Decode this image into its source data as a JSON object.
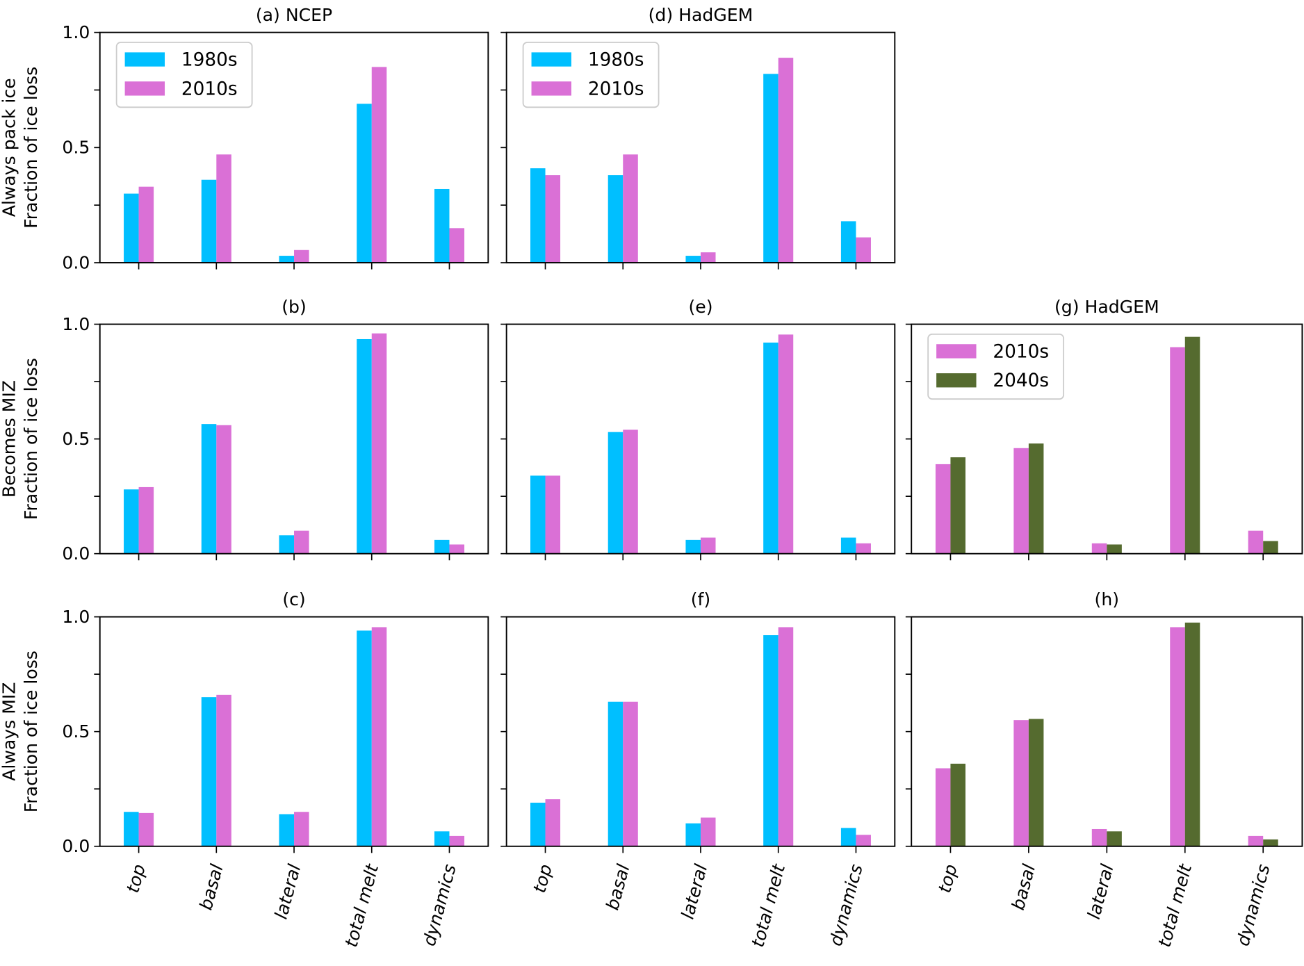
{
  "chart_data": {
    "type": "bar",
    "categories": [
      "top",
      "basal",
      "lateral",
      "total melt",
      "dynamics"
    ],
    "ylim": [
      0,
      1
    ],
    "yticks": [
      "0.0",
      "0.5",
      "1.0"
    ],
    "colors": {
      "1980s": "#00bfff",
      "2010s": "#da70d6",
      "2040s": "#556b2f"
    },
    "row_labels": [
      [
        "Always pack ice",
        "Fraction of ice loss"
      ],
      [
        "Becomes MIZ",
        "Fraction of ice loss"
      ],
      [
        "Always MIZ",
        "Fraction of ice loss"
      ]
    ],
    "panels": [
      {
        "title": "(a) NCEP",
        "row": 0,
        "col": 0,
        "legend": "top-left",
        "series": [
          {
            "name": "1980s",
            "values": [
              0.3,
              0.36,
              0.03,
              0.69,
              0.32
            ]
          },
          {
            "name": "2010s",
            "values": [
              0.33,
              0.47,
              0.055,
              0.85,
              0.15
            ]
          }
        ]
      },
      {
        "title": "(d) HadGEM",
        "row": 0,
        "col": 1,
        "legend": "top-left",
        "series": [
          {
            "name": "1980s",
            "values": [
              0.41,
              0.38,
              0.03,
              0.82,
              0.18
            ]
          },
          {
            "name": "2010s",
            "values": [
              0.38,
              0.47,
              0.045,
              0.89,
              0.11
            ]
          }
        ]
      },
      {
        "title": "(b)",
        "row": 1,
        "col": 0,
        "series": [
          {
            "name": "1980s",
            "values": [
              0.28,
              0.565,
              0.08,
              0.935,
              0.06
            ]
          },
          {
            "name": "2010s",
            "values": [
              0.29,
              0.56,
              0.1,
              0.96,
              0.04
            ]
          }
        ]
      },
      {
        "title": "(e)",
        "row": 1,
        "col": 1,
        "series": [
          {
            "name": "1980s",
            "values": [
              0.34,
              0.53,
              0.06,
              0.92,
              0.07
            ]
          },
          {
            "name": "2010s",
            "values": [
              0.34,
              0.54,
              0.07,
              0.955,
              0.045
            ]
          }
        ]
      },
      {
        "title": "(g) HadGEM",
        "row": 1,
        "col": 2,
        "legend": "top-left",
        "series": [
          {
            "name": "2010s",
            "values": [
              0.39,
              0.46,
              0.045,
              0.9,
              0.1
            ]
          },
          {
            "name": "2040s",
            "values": [
              0.42,
              0.48,
              0.04,
              0.945,
              0.055
            ]
          }
        ]
      },
      {
        "title": "(c)",
        "row": 2,
        "col": 0,
        "series": [
          {
            "name": "1980s",
            "values": [
              0.15,
              0.65,
              0.14,
              0.94,
              0.065
            ]
          },
          {
            "name": "2010s",
            "values": [
              0.145,
              0.66,
              0.15,
              0.955,
              0.045
            ]
          }
        ]
      },
      {
        "title": "(f)",
        "row": 2,
        "col": 1,
        "series": [
          {
            "name": "1980s",
            "values": [
              0.19,
              0.63,
              0.1,
              0.92,
              0.08
            ]
          },
          {
            "name": "2010s",
            "values": [
              0.205,
              0.63,
              0.125,
              0.955,
              0.05
            ]
          }
        ]
      },
      {
        "title": "(h)",
        "row": 2,
        "col": 2,
        "series": [
          {
            "name": "2010s",
            "values": [
              0.34,
              0.55,
              0.075,
              0.955,
              0.045
            ]
          },
          {
            "name": "2040s",
            "values": [
              0.36,
              0.555,
              0.065,
              0.975,
              0.03
            ]
          }
        ]
      }
    ]
  }
}
